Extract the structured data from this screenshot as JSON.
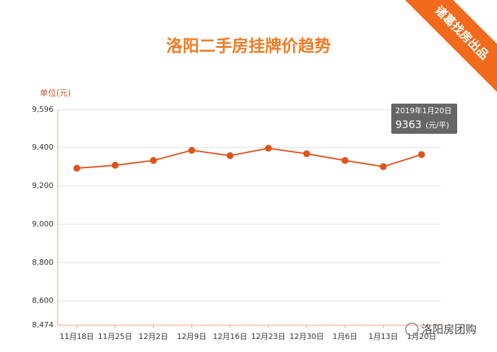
{
  "chart_data": {
    "type": "line",
    "title": "洛阳二手房挂牌价趋势",
    "badge": "诸葛找房出品",
    "y_label": "单位(元)",
    "categories": [
      "11月18日",
      "11月25日",
      "12月2日",
      "12月9日",
      "12月16日",
      "12月23日",
      "12月30日",
      "1月6日",
      "1月13日",
      "1月20日"
    ],
    "series": [
      {
        "color": "#e0531c",
        "values": [
          9292,
          9307,
          9332,
          9385,
          9357,
          9396,
          9367,
          9332,
          9300,
          9363
        ]
      }
    ],
    "ylim": [
      8474,
      9596
    ],
    "yticks": [
      {
        "value": 8474,
        "label": "8,474"
      },
      {
        "value": 8600,
        "label": "8,600"
      },
      {
        "value": 8800,
        "label": "8,800"
      },
      {
        "value": 9000,
        "label": "9,000"
      },
      {
        "value": 9200,
        "label": "9,200"
      },
      {
        "value": 9400,
        "label": "9,400"
      },
      {
        "value": 9596,
        "label": "9,596"
      }
    ],
    "grid": true,
    "tooltip": {
      "date": "2019年1月20日",
      "unit": "(元/平)"
    },
    "watermark": "洛阳房团购"
  }
}
